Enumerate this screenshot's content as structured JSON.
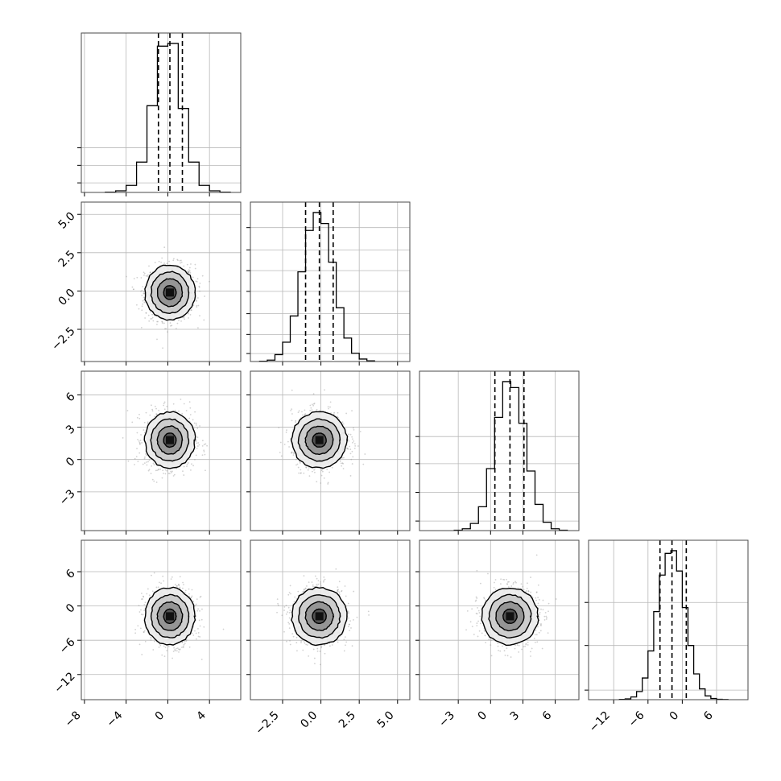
{
  "chart_data": {
    "type": "corner",
    "grid": true,
    "n_params": 4,
    "params": [
      {
        "index": 0,
        "mean": 0.2,
        "sigma": 1.2,
        "quantiles": [
          -0.9,
          0.2,
          1.4
        ],
        "range": [
          -8.3,
          7.0
        ],
        "ticks": [
          -8,
          -4,
          0,
          4
        ],
        "tick_labels": [
          "−8",
          "−4",
          "0",
          "4"
        ],
        "hist_x": [
          -5.5,
          -4.5,
          -3.5,
          -2.5,
          -1.5,
          -0.5,
          0.5,
          1.5,
          2.5,
          3.5,
          4.5,
          5.5
        ],
        "hist_y": [
          5,
          30,
          130,
          560,
          1600,
          2700,
          2750,
          1550,
          560,
          130,
          30,
          5
        ]
      },
      {
        "index": 1,
        "mean": -0.1,
        "sigma": 0.9,
        "quantiles": [
          -1.0,
          -0.1,
          0.8
        ],
        "range": [
          -4.6,
          5.8
        ],
        "ticks": [
          -2.5,
          0.0,
          2.5,
          5.0
        ],
        "tick_labels": [
          "−2.5",
          "0.0",
          "2.5",
          "5.0"
        ],
        "hist_x": [
          -3.75,
          -3.25,
          -2.75,
          -2.25,
          -1.75,
          -1.25,
          -0.75,
          -0.25,
          0.25,
          0.75,
          1.25,
          1.75,
          2.25,
          2.75,
          3.25
        ],
        "hist_y": [
          2,
          10,
          50,
          140,
          330,
          650,
          950,
          1080,
          1000,
          720,
          390,
          170,
          60,
          18,
          5
        ]
      },
      {
        "index": 2,
        "mean": 1.8,
        "sigma": 1.3,
        "quantiles": [
          0.4,
          1.8,
          3.1
        ],
        "range": [
          -6.6,
          8.2
        ],
        "ticks": [
          -3,
          0,
          3,
          6
        ],
        "tick_labels": [
          "−3",
          "0",
          "3",
          "6"
        ],
        "hist_x": [
          -3.0,
          -2.25,
          -1.5,
          -0.75,
          0.0,
          0.75,
          1.5,
          2.25,
          3.0,
          3.75,
          4.5,
          5.25,
          6.0,
          6.75
        ],
        "hist_y": [
          3,
          15,
          60,
          200,
          520,
          950,
          1250,
          1200,
          900,
          500,
          220,
          70,
          15,
          3
        ]
      },
      {
        "index": 3,
        "mean": -1.8,
        "sigma": 2.5,
        "quantiles": [
          -3.9,
          -1.8,
          0.7
        ],
        "range": [
          -16.4,
          11.5
        ],
        "ticks": [
          -12,
          -6,
          0,
          6
        ],
        "tick_labels": [
          "−12",
          "−6",
          "0",
          "6"
        ],
        "hist_x": [
          -10.5,
          -9.5,
          -8.5,
          -7.5,
          -6.5,
          -5.5,
          -4.5,
          -3.5,
          -2.5,
          -1.5,
          -0.5,
          0.5,
          1.5,
          2.5,
          3.5,
          4.5,
          5.5,
          6.5,
          7.5
        ],
        "hist_y": [
          2,
          6,
          20,
          60,
          160,
          360,
          650,
          920,
          1080,
          1100,
          950,
          680,
          400,
          190,
          80,
          28,
          9,
          3,
          1
        ]
      }
    ],
    "panels": [
      {
        "row": 0,
        "col": 0,
        "kind": "histogram",
        "y_tick_values": [
          0.06,
          0.17,
          0.28
        ]
      },
      {
        "row": 1,
        "col": 1,
        "kind": "histogram",
        "y_tick_values": [
          0.05,
          0.17,
          0.3,
          0.44,
          0.57,
          0.7,
          0.84
        ]
      },
      {
        "row": 2,
        "col": 2,
        "kind": "histogram",
        "y_tick_values": [
          0.06,
          0.24,
          0.42,
          0.59
        ]
      },
      {
        "row": 3,
        "col": 3,
        "kind": "histogram",
        "y_tick_values": [
          0.06,
          0.34,
          0.61
        ]
      },
      {
        "row": 1,
        "col": 0,
        "kind": "2d-density",
        "x_param": 0,
        "y_param": 1
      },
      {
        "row": 2,
        "col": 0,
        "kind": "2d-density",
        "x_param": 0,
        "y_param": 2
      },
      {
        "row": 2,
        "col": 1,
        "kind": "2d-density",
        "x_param": 1,
        "y_param": 2
      },
      {
        "row": 3,
        "col": 0,
        "kind": "2d-density",
        "x_param": 0,
        "y_param": 3
      },
      {
        "row": 3,
        "col": 1,
        "kind": "2d-density",
        "x_param": 1,
        "y_param": 3
      },
      {
        "row": 3,
        "col": 2,
        "kind": "2d-density",
        "x_param": 2,
        "y_param": 3
      }
    ],
    "contour_levels_sigma": [
      0.5,
      1.0,
      1.5,
      2.0
    ],
    "colors": {
      "hist": "#000000",
      "scatter": "#9a9a9a",
      "grid": "#b8b8b8",
      "frame": "#4a4a4a"
    }
  }
}
